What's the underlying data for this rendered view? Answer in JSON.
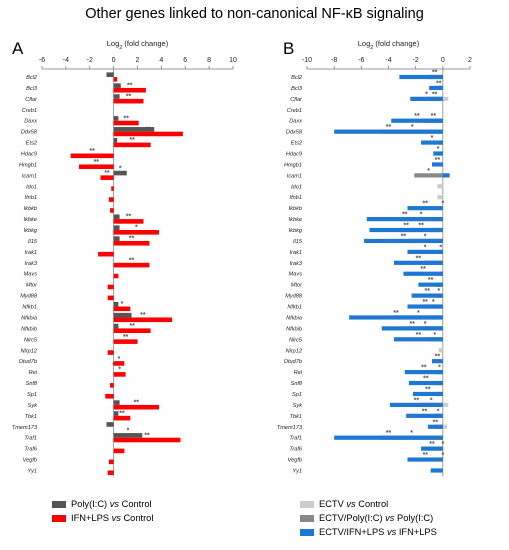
{
  "title": "Other genes linked to non-canonical NF-κB signaling",
  "chart_data": [
    {
      "panel": "A",
      "type": "bar",
      "orientation": "horizontal",
      "xlabel": "Log2 (fold change)",
      "xlim": [
        -6,
        10
      ],
      "xticks": [
        -6,
        -4,
        -2,
        0,
        2,
        4,
        6,
        8,
        10
      ],
      "grid": false,
      "legend_position": "bottom-left",
      "categories": [
        "Bcl2",
        "Bcl3",
        "Cflar",
        "Creb1",
        "Daxx",
        "Ddx58",
        "Ets2",
        "Hdac9",
        "Hmgb1",
        "Icam1",
        "Ido1",
        "Ifnb1",
        "Ikbkb",
        "Ikbke",
        "Ikbkg",
        "Il15",
        "Irak1",
        "Irak3",
        "Mavs",
        "Mtor",
        "Myd88",
        "Nfkb1",
        "Nfkbia",
        "Nfkbib",
        "Nlrc5",
        "Nlrp12",
        "Otud7b",
        "Rel",
        "Snf8",
        "Sp1",
        "Syk",
        "Tbk1",
        "Tmem173",
        "Traf1",
        "Traf6",
        "Vegfb",
        "Yy1"
      ],
      "series": [
        {
          "name": "Poly(I:C) vs Control",
          "color": "#555555",
          "values": [
            -0.6,
            0.6,
            0.5,
            0,
            0.4,
            3.4,
            0.3,
            0,
            0,
            1.1,
            0,
            0,
            0,
            0.5,
            0.5,
            0.5,
            0,
            0,
            0,
            0,
            0,
            0.4,
            1.5,
            0.4,
            0,
            0,
            0,
            0,
            0,
            0,
            0.5,
            0.4,
            -0.6,
            2.4,
            0,
            0,
            0
          ],
          "significance": [
            "",
            "",
            "",
            "",
            "",
            "**",
            "*",
            "",
            "",
            "*",
            "",
            "",
            "",
            "",
            "**",
            "",
            "",
            "",
            "",
            "",
            "",
            "",
            "*",
            "*",
            "",
            "",
            "",
            "*",
            "",
            "",
            "",
            "*",
            "",
            "*",
            "",
            "",
            ""
          ]
        },
        {
          "name": "IFN+LPS vs Control",
          "color": "#ff0000",
          "values": [
            0.3,
            2.7,
            2.5,
            0,
            2.1,
            5.8,
            3.1,
            -3.6,
            -2.9,
            -1.1,
            -0.2,
            -0.4,
            -0.3,
            2.5,
            3.8,
            3.0,
            -1.3,
            3.0,
            0.4,
            -0.5,
            -0.5,
            1.4,
            4.9,
            3.1,
            2.0,
            -0.5,
            0.9,
            1.0,
            -0.3,
            -0.7,
            3.8,
            1.4,
            0,
            5.6,
            0.9,
            -0.4,
            -0.5
          ],
          "significance": [
            "",
            "**",
            "**",
            "",
            "**",
            "**",
            "**",
            "**",
            "**",
            "**",
            "",
            "",
            "",
            "**",
            "*",
            "**",
            "",
            "**",
            "",
            "",
            "",
            "*",
            "**",
            "**",
            "**",
            "",
            "*",
            "*",
            "",
            "",
            "**",
            "**",
            "",
            "**",
            "",
            "",
            ""
          ]
        }
      ]
    },
    {
      "panel": "B",
      "type": "bar",
      "orientation": "horizontal",
      "xlabel": "Log2 (fold change)",
      "xlim": [
        -10,
        2
      ],
      "xticks": [
        -10,
        -8,
        -6,
        -4,
        -2,
        0,
        2
      ],
      "grid": false,
      "legend_position": "bottom-right",
      "categories": [
        "Bcl2",
        "Bcl3",
        "Cflar",
        "Creb1",
        "Daxx",
        "Ddx58",
        "Ets2",
        "Hdac9",
        "Hmgb1",
        "Icam1",
        "Ido1",
        "Ifnb1",
        "Ikbkb",
        "Ikbke",
        "Ikbkg",
        "Il15",
        "Irak1",
        "Irak3",
        "Mavs",
        "Mtor",
        "Myd88",
        "Nfkb1",
        "Nfkbia",
        "Nfkbib",
        "Nlrc5",
        "Nlrp12",
        "Otud7b",
        "Rel",
        "Snf8",
        "Sp1",
        "Syk",
        "Tbk1",
        "Tmem173",
        "Traf1",
        "Traf6",
        "Vegfb",
        "Yy1"
      ],
      "series": [
        {
          "name": "ECTV vs Control",
          "color": "#cccccc",
          "values": [
            0,
            -0.4,
            0.4,
            0,
            -0.3,
            -0.4,
            0,
            0,
            0,
            -0.3,
            -0.4,
            -0.4,
            0,
            -0.5,
            -0.4,
            -0.3,
            0,
            -0.5,
            0,
            -0.4,
            -0.4,
            -0.3,
            -0.5,
            -0.4,
            -0.3,
            -0.3,
            0,
            -0.3,
            -0.3,
            -0.4,
            0.4,
            -0.3,
            0.3,
            -0.4,
            0,
            0,
            -0.3
          ],
          "significance": [
            "",
            "",
            "",
            "",
            "",
            "",
            "",
            "",
            "",
            "",
            "",
            "",
            "",
            "",
            "",
            "",
            "",
            "",
            "",
            "",
            "",
            "",
            "",
            "",
            "",
            "",
            "",
            "",
            "",
            "",
            "",
            "",
            "",
            "",
            "",
            "",
            ""
          ]
        },
        {
          "name": "ECTV/Poly(I:C) vs Poly(I:C)",
          "color": "#888888",
          "values": [
            -1.2,
            -0.6,
            -1.2,
            0,
            -1.4,
            -4.5,
            -0.3,
            0,
            0,
            -2.1,
            0,
            0,
            0,
            -3.2,
            -3.2,
            -2.6,
            -0.3,
            -1.3,
            -0.3,
            -0.5,
            -0.6,
            -1.4,
            -3.6,
            -2.6,
            -1.2,
            0,
            0,
            -0.5,
            -0.7,
            -0.5,
            -1.7,
            -0.7,
            -0.6,
            -4.6,
            0,
            0,
            0
          ],
          "significance": [
            "**",
            "**",
            "**",
            "",
            "**",
            "*",
            "",
            "",
            "",
            "*",
            "",
            "",
            "*",
            "*",
            "**",
            "*",
            "*",
            "",
            "",
            "",
            "*",
            "*",
            "*",
            "*",
            "*",
            "",
            "",
            "*",
            "",
            "",
            "*",
            "*",
            "",
            "*",
            "*",
            "*",
            ""
          ]
        },
        {
          "name": "ECTV/IFN+LPS vs IFN+LPS",
          "color": "#1f77d4",
          "values": [
            -3.2,
            -1.0,
            -2.4,
            0,
            -3.8,
            -8.0,
            -1.6,
            -0.7,
            -0.8,
            0.5,
            0,
            0,
            -2.6,
            -5.6,
            -5.4,
            -5.8,
            -2.6,
            -3.6,
            -2.9,
            -1.8,
            -2.3,
            -2.6,
            -6.9,
            -4.5,
            -3.6,
            0,
            -0.8,
            -2.8,
            -2.5,
            -2.2,
            -3.9,
            -2.7,
            -1.1,
            -8.0,
            -1.6,
            -2.6,
            -0.9
          ],
          "significance": [
            "",
            "",
            "*",
            "",
            "**",
            "**",
            "*",
            "*",
            "**",
            "",
            "",
            "",
            "**",
            "**",
            "**",
            "**",
            "*",
            "**",
            "**",
            "**",
            "**",
            "**",
            "**",
            "**",
            "**",
            "",
            "**",
            "**",
            "**",
            "**",
            "**",
            "**",
            "**",
            "**",
            "**",
            "**",
            ""
          ]
        }
      ]
    }
  ]
}
